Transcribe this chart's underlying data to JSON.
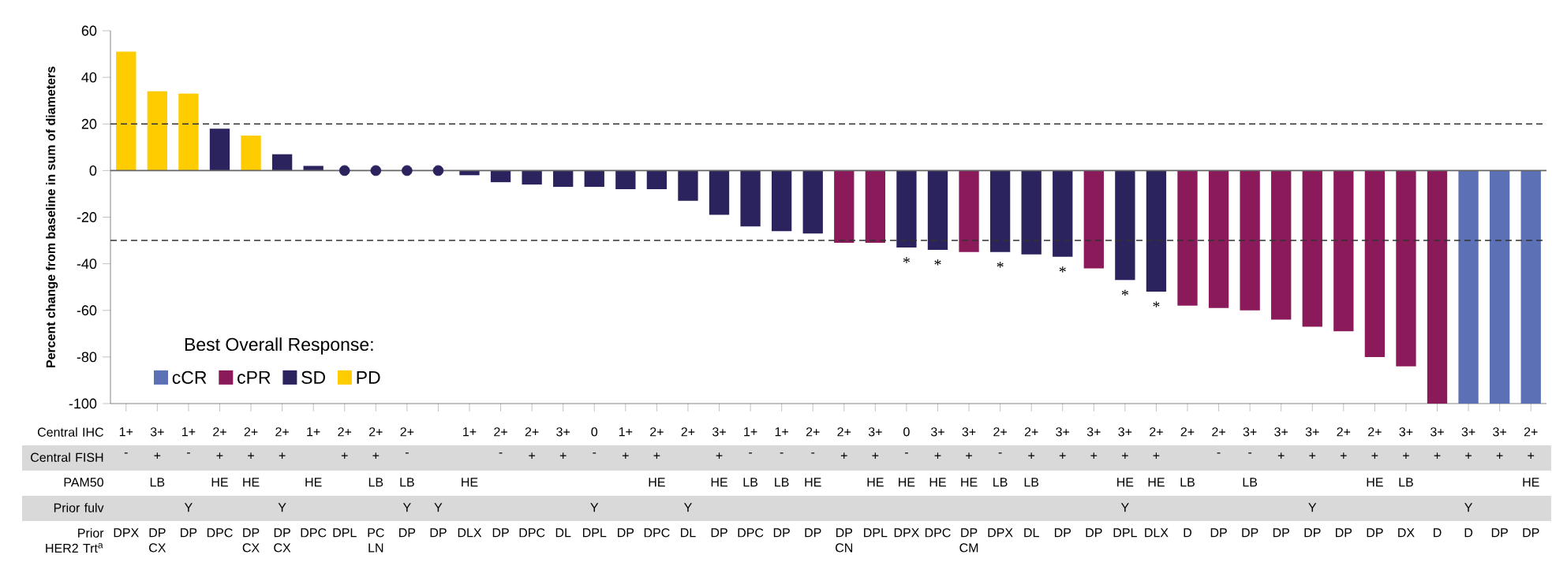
{
  "chart_data": [
    {
      "type": "bar",
      "ylabel": "Percent change from baseline in sum of diameters",
      "categories": [
        null,
        null,
        null,
        null,
        null,
        null,
        null,
        null,
        null,
        null,
        null,
        null,
        null,
        null,
        null,
        null,
        null,
        null,
        null,
        null,
        null,
        null,
        null,
        null,
        null,
        null,
        null,
        null,
        null,
        null,
        null,
        null,
        null,
        null,
        null,
        null,
        null,
        null,
        null,
        null,
        null,
        null,
        null,
        null,
        null,
        null
      ],
      "series": [
        {
          "name": "cCR",
          "color": "#5b70b5",
          "values": [
            null,
            null,
            null,
            null,
            null,
            null,
            null,
            null,
            null,
            null,
            null,
            null,
            null,
            null,
            null,
            null,
            null,
            null,
            null,
            null,
            null,
            null,
            null,
            null,
            null,
            null,
            null,
            null,
            null,
            null,
            null,
            null,
            null,
            null,
            null,
            null,
            null,
            null,
            null,
            null,
            null,
            null,
            null,
            -100,
            -100,
            -100
          ]
        },
        {
          "name": "cPR",
          "color": "#8b1a5a",
          "values": [
            null,
            null,
            null,
            null,
            null,
            null,
            null,
            null,
            null,
            null,
            null,
            null,
            null,
            null,
            null,
            null,
            null,
            null,
            null,
            null,
            null,
            null,
            null,
            -31,
            -31,
            null,
            null,
            -35,
            null,
            null,
            null,
            -42,
            null,
            null,
            -58,
            -59,
            -60,
            -64,
            -67,
            -69,
            -80,
            -84,
            -100,
            null,
            null,
            null
          ]
        },
        {
          "name": "SD",
          "color": "#2a235e",
          "values": [
            null,
            null,
            null,
            18,
            null,
            7,
            2,
            null,
            null,
            null,
            null,
            -2,
            -5,
            -6,
            -7,
            -7,
            -8,
            -8,
            -13,
            -19,
            -24,
            -26,
            -27,
            null,
            null,
            -33,
            -34,
            null,
            -35,
            -36,
            -37,
            null,
            -47,
            -52,
            null,
            null,
            null,
            null,
            null,
            null,
            null,
            null,
            null,
            null,
            null,
            null
          ],
          "value_labels": [
            null,
            null,
            null,
            null,
            null,
            null,
            null,
            null,
            null,
            null,
            null,
            null,
            null,
            null,
            null,
            null,
            null,
            null,
            null,
            null,
            null,
            null,
            null,
            null,
            null,
            "*",
            "*",
            null,
            "*",
            null,
            "*",
            null,
            "*",
            "*",
            null,
            null,
            null,
            null,
            null,
            null,
            null,
            null,
            null,
            null,
            null,
            null
          ]
        },
        {
          "name": "PD",
          "color": "#ffcc00",
          "values": [
            51,
            34,
            33,
            null,
            15,
            null,
            null,
            null,
            null,
            null,
            null,
            null,
            null,
            null,
            null,
            null,
            null,
            null,
            null,
            null,
            null,
            null,
            null,
            null,
            null,
            null,
            null,
            null,
            null,
            null,
            null,
            null,
            null,
            null,
            null,
            null,
            null,
            null,
            null,
            null,
            null,
            null,
            null,
            null,
            null,
            null
          ]
        },
        {
          "type": "scatter",
          "marker": "circle",
          "color": "#2a235e",
          "values": [
            null,
            null,
            null,
            null,
            null,
            null,
            null,
            0,
            0,
            0,
            0,
            null,
            null,
            null,
            null,
            null,
            null,
            null,
            null,
            null,
            null,
            null,
            null,
            null,
            null,
            null,
            null,
            null,
            null,
            null,
            null,
            null,
            null,
            null,
            null,
            null,
            null,
            null,
            null,
            null,
            null,
            null,
            null,
            null,
            null,
            null
          ]
        }
      ],
      "ylim": [
        -100,
        60
      ],
      "yticks": [
        -100,
        -80,
        -60,
        -40,
        -20,
        0,
        20,
        40,
        60
      ],
      "ref_lines": [
        {
          "axis": "y",
          "value": 0,
          "line_style": "solid",
          "color": "#666666"
        },
        {
          "axis": "y",
          "value": 20,
          "line_style": "dashed",
          "color": "#333333"
        },
        {
          "axis": "y",
          "value": -30,
          "line_style": "dashed",
          "color": "#333333"
        }
      ],
      "legend": "bottom left",
      "legend_title": "Best Overall Response:",
      "tick_labels": "y"
    },
    {
      "type": "other",
      "y_categories": [
        "Central IHC",
        "Central FISH",
        "PAM50",
        "Prior fulv",
        "Prior HER2 Trt$^{a}$"
      ],
      "cell_labels": [
        [
          "1+",
          "3+",
          "1+",
          "2+",
          "2+",
          "2+",
          "1+",
          "2+",
          "2+",
          "2+",
          null,
          "1+",
          "2+",
          "2+",
          "3+",
          "0",
          "1+",
          "2+",
          "2+",
          "3+",
          "1+",
          "1+",
          "2+",
          "2+",
          "3+",
          "0",
          "3+",
          "3+",
          "2+",
          "2+",
          "3+",
          "3+",
          "3+",
          "2+",
          "2+",
          "2+",
          "3+",
          "3+",
          "3+",
          "2+",
          "2+",
          "3+",
          "3+",
          "3+",
          "3+",
          "2+"
        ],
        [
          "-",
          "+",
          "-",
          "+",
          "+",
          "+",
          null,
          "+",
          "+",
          "-",
          null,
          null,
          "-",
          "+",
          "+",
          "-",
          "+",
          "+",
          null,
          "+",
          "-",
          "-",
          "-",
          "+",
          "+",
          "-",
          "+",
          "+",
          "-",
          "+",
          "+",
          "+",
          "+",
          "+",
          null,
          "-",
          "-",
          "+",
          "+",
          "+",
          "+",
          "+",
          "+",
          "+",
          "+",
          "+"
        ],
        [
          null,
          "LB",
          null,
          "HE",
          "HE",
          null,
          "HE",
          null,
          "LB",
          "LB",
          null,
          "HE",
          null,
          null,
          null,
          null,
          null,
          "HE",
          null,
          "HE",
          "LB",
          "LB",
          "HE",
          null,
          "HE",
          "HE",
          "HE",
          "HE",
          "LB",
          "LB",
          null,
          null,
          "HE",
          "HE",
          "LB",
          null,
          "LB",
          null,
          null,
          null,
          "HE",
          "LB",
          null,
          null,
          null,
          "HE"
        ],
        [
          null,
          null,
          "Y",
          null,
          null,
          "Y",
          null,
          null,
          null,
          "Y",
          "Y",
          null,
          null,
          null,
          null,
          "Y",
          null,
          null,
          "Y",
          null,
          null,
          null,
          null,
          null,
          null,
          null,
          null,
          null,
          null,
          null,
          null,
          null,
          "Y",
          null,
          null,
          null,
          null,
          null,
          "Y",
          null,
          null,
          null,
          null,
          "Y",
          null,
          null
        ],
        [
          "DPX",
          "DP CX",
          "DP",
          "DPC",
          "DP CX",
          "DP CX",
          "DPC",
          "DPL",
          "PC LN",
          "DP",
          "DP",
          "DLX",
          "DP",
          "DPC",
          "DL",
          "DPL",
          "DP",
          "DPC",
          "DL",
          "DP",
          "DPC",
          "DP",
          "DP",
          "DP CN",
          "DPL",
          "DPX",
          "DPC",
          "DP CM",
          "DPX",
          "DL",
          "DP",
          "DP",
          "DPL",
          "DLX",
          "D",
          "DP",
          "DP",
          "DP",
          "DP",
          "DP",
          "DP",
          "DX",
          "D",
          "D",
          "DP",
          "DP"
        ]
      ]
    }
  ]
}
